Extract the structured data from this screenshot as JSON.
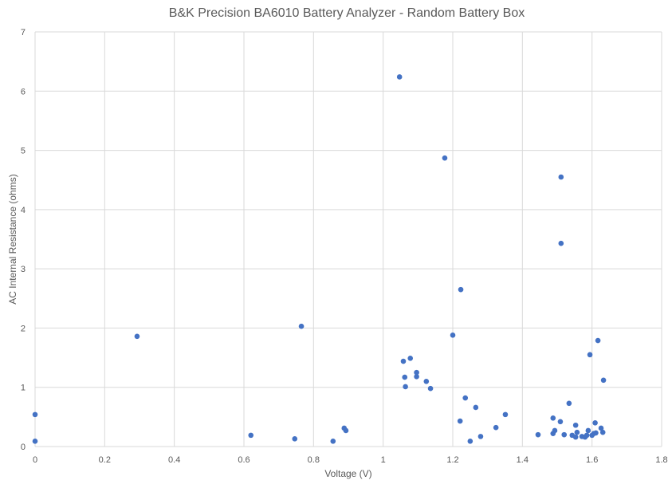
{
  "chart_data": {
    "type": "scatter",
    "title": "B&K Precision BA6010 Battery Analyzer - Random Battery Box",
    "xlabel": "Voltage (V)",
    "ylabel": "AC Internal Resistance (ohms)",
    "xlim": [
      0,
      1.8
    ],
    "ylim": [
      0,
      7
    ],
    "xticks": [
      "0",
      "0.2",
      "0.4",
      "0.6",
      "0.8",
      "1",
      "1.2",
      "1.4",
      "1.6",
      "1.8"
    ],
    "yticks": [
      "0",
      "1",
      "2",
      "3",
      "4",
      "5",
      "6",
      "7"
    ],
    "grid": true,
    "legend": "none",
    "marker_color": "#4472C4",
    "points": [
      [
        0,
        0.54
      ],
      [
        0,
        0.09
      ],
      [
        0.293,
        1.86
      ],
      [
        0.62,
        0.19
      ],
      [
        0.746,
        0.13
      ],
      [
        0.765,
        2.03
      ],
      [
        0.856,
        0.09
      ],
      [
        0.888,
        0.31
      ],
      [
        0.893,
        0.27
      ],
      [
        1.047,
        6.24
      ],
      [
        1.058,
        1.44
      ],
      [
        1.062,
        1.17
      ],
      [
        1.064,
        1.01
      ],
      [
        1.078,
        1.49
      ],
      [
        1.096,
        1.25
      ],
      [
        1.096,
        1.18
      ],
      [
        1.124,
        1.1
      ],
      [
        1.136,
        0.98
      ],
      [
        1.177,
        4.87
      ],
      [
        1.2,
        1.88
      ],
      [
        1.223,
        2.65
      ],
      [
        1.221,
        0.43
      ],
      [
        1.236,
        0.82
      ],
      [
        1.25,
        0.09
      ],
      [
        1.266,
        0.66
      ],
      [
        1.28,
        0.17
      ],
      [
        1.324,
        0.32
      ],
      [
        1.351,
        0.54
      ],
      [
        1.445,
        0.2
      ],
      [
        1.488,
        0.48
      ],
      [
        1.493,
        0.27
      ],
      [
        1.488,
        0.22
      ],
      [
        1.509,
        0.42
      ],
      [
        1.511,
        4.55
      ],
      [
        1.511,
        3.43
      ],
      [
        1.52,
        0.2
      ],
      [
        1.534,
        0.73
      ],
      [
        1.543,
        0.19
      ],
      [
        1.553,
        0.36
      ],
      [
        1.553,
        0.16
      ],
      [
        1.557,
        0.24
      ],
      [
        1.571,
        0.17
      ],
      [
        1.58,
        0.16
      ],
      [
        1.585,
        0.19
      ],
      [
        1.589,
        0.27
      ],
      [
        1.594,
        1.55
      ],
      [
        1.6,
        0.19
      ],
      [
        1.605,
        0.22
      ],
      [
        1.611,
        0.23
      ],
      [
        1.609,
        0.4
      ],
      [
        1.617,
        1.79
      ],
      [
        1.626,
        0.31
      ],
      [
        1.631,
        0.24
      ],
      [
        1.633,
        1.12
      ]
    ]
  }
}
